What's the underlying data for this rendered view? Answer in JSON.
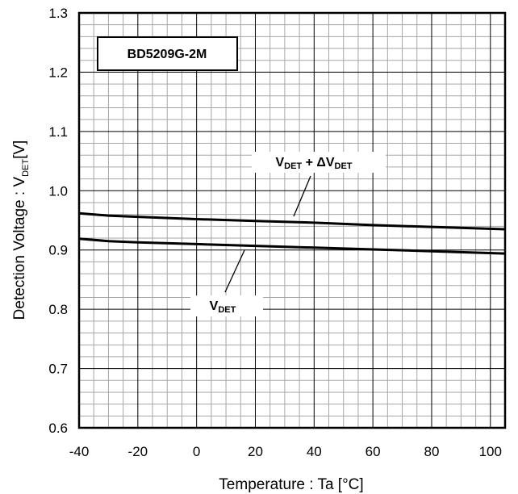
{
  "chart_data": {
    "type": "line",
    "title": "",
    "xlabel": "Temperature : Ta [°C]",
    "ylabel": {
      "main": "Detection Voltage : V",
      "sub": "DET",
      "unit": "[V]"
    },
    "xlim": [
      -40,
      105
    ],
    "ylim": [
      0.6,
      1.3
    ],
    "xticks": [
      -40,
      -20,
      0,
      20,
      40,
      60,
      80,
      100
    ],
    "yticks": [
      0.6,
      0.7,
      0.8,
      0.9,
      1.0,
      1.1,
      1.2,
      1.3
    ],
    "ytick_labels": [
      "0.6",
      "0.7",
      "0.8",
      "0.9",
      "1.0",
      "1.1",
      "1.2",
      "1.3"
    ],
    "grid": true,
    "label_box": "BD5209G-2M",
    "series": [
      {
        "label_parts": [
          "V",
          "DET",
          " + ΔV",
          "DET"
        ],
        "x": [
          -40,
          -30,
          -20,
          0,
          20,
          40,
          60,
          80,
          105
        ],
        "y": [
          0.962,
          0.958,
          0.956,
          0.952,
          0.949,
          0.946,
          0.942,
          0.939,
          0.935
        ]
      },
      {
        "label_parts": [
          "V",
          "DET"
        ],
        "x": [
          -40,
          -30,
          -20,
          0,
          20,
          40,
          60,
          80,
          105
        ],
        "y": [
          0.919,
          0.915,
          0.913,
          0.91,
          0.907,
          0.904,
          0.901,
          0.898,
          0.894
        ]
      }
    ]
  }
}
